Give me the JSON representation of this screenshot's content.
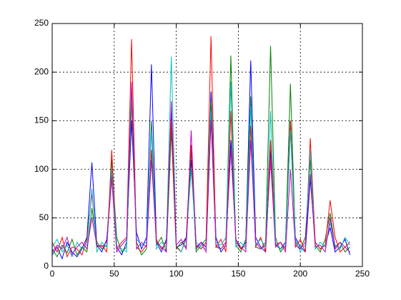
{
  "chart_data": {
    "type": "line",
    "x": [
      0,
      4,
      8,
      12,
      16,
      20,
      24,
      28,
      32,
      36,
      40,
      44,
      48,
      52,
      56,
      60,
      64,
      68,
      72,
      76,
      80,
      84,
      88,
      92,
      96,
      100,
      104,
      108,
      112,
      116,
      120,
      124,
      128,
      132,
      136,
      140,
      144,
      148,
      152,
      156,
      160,
      164,
      168,
      172,
      176,
      180,
      184,
      188,
      192,
      196,
      200,
      204,
      208,
      212,
      216,
      220,
      224,
      228,
      232,
      236,
      240
    ],
    "series": [
      {
        "color": "#0000ff",
        "values": [
          12,
          20,
          8,
          25,
          15,
          10,
          18,
          30,
          107,
          22,
          15,
          28,
          95,
          20,
          12,
          25,
          150,
          35,
          18,
          30,
          208,
          25,
          15,
          28,
          160,
          20,
          22,
          30,
          110,
          18,
          25,
          20,
          180,
          30,
          15,
          22,
          130,
          28,
          18,
          25,
          212,
          30,
          20,
          15,
          120,
          22,
          18,
          25,
          150,
          30,
          20,
          15,
          90,
          25,
          18,
          22,
          40,
          15,
          20,
          28,
          12
        ]
      },
      {
        "color": "#008000",
        "values": [
          18,
          10,
          22,
          14,
          28,
          12,
          20,
          15,
          60,
          25,
          18,
          22,
          110,
          30,
          15,
          20,
          170,
          25,
          12,
          18,
          150,
          22,
          30,
          15,
          140,
          18,
          25,
          20,
          120,
          15,
          22,
          28,
          170,
          20,
          18,
          25,
          217,
          22,
          15,
          28,
          175,
          20,
          18,
          25,
          227,
          30,
          15,
          22,
          188,
          25,
          18,
          30,
          110,
          22,
          15,
          28,
          55,
          20,
          25,
          15,
          20
        ]
      },
      {
        "color": "#ff0000",
        "values": [
          25,
          15,
          30,
          10,
          20,
          18,
          12,
          28,
          75,
          20,
          22,
          15,
          120,
          18,
          25,
          30,
          234,
          20,
          15,
          22,
          120,
          28,
          18,
          25,
          150,
          20,
          15,
          30,
          125,
          22,
          18,
          25,
          237,
          20,
          28,
          15,
          160,
          25,
          18,
          22,
          145,
          20,
          30,
          15,
          130,
          22,
          25,
          18,
          150,
          20,
          28,
          15,
          132,
          25,
          18,
          22,
          68,
          30,
          15,
          20,
          25
        ]
      },
      {
        "color": "#00bfbf",
        "values": [
          20,
          28,
          15,
          22,
          10,
          25,
          18,
          22,
          80,
          15,
          25,
          20,
          100,
          22,
          18,
          15,
          180,
          28,
          22,
          25,
          140,
          18,
          25,
          20,
          216,
          22,
          15,
          28,
          100,
          25,
          20,
          18,
          160,
          25,
          22,
          30,
          190,
          20,
          25,
          18,
          165,
          22,
          28,
          20,
          160,
          25,
          18,
          22,
          140,
          28,
          15,
          22,
          120,
          18,
          25,
          20,
          45,
          22,
          18,
          30,
          22
        ]
      },
      {
        "color": "#bf00bf",
        "values": [
          15,
          22,
          18,
          30,
          12,
          20,
          25,
          18,
          50,
          22,
          20,
          25,
          90,
          15,
          22,
          28,
          190,
          18,
          25,
          20,
          110,
          25,
          20,
          15,
          170,
          22,
          28,
          18,
          140,
          20,
          25,
          15,
          150,
          22,
          18,
          25,
          120,
          28,
          20,
          15,
          130,
          25,
          18,
          22,
          110,
          20,
          25,
          15,
          100,
          22,
          18,
          25,
          95,
          20,
          22,
          15,
          50,
          18,
          25,
          20,
          15
        ]
      }
    ],
    "xlim": [
      0,
      250
    ],
    "ylim": [
      0,
      250
    ],
    "xticks": [
      0,
      50,
      100,
      150,
      200,
      250
    ],
    "yticks": [
      0,
      50,
      100,
      150,
      200,
      250
    ],
    "grid": true
  }
}
